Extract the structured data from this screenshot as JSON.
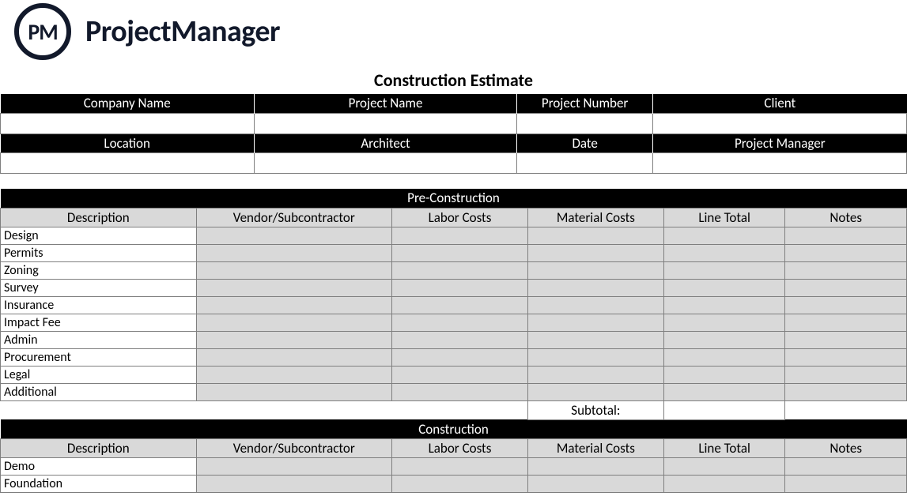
{
  "logo": {
    "initials": "PM",
    "brand": "ProjectManager"
  },
  "title": "Construction Estimate",
  "meta1": {
    "headers": [
      "Company Name",
      "Project Name",
      "Project Number",
      "Client"
    ],
    "values": [
      "",
      "",
      "",
      ""
    ]
  },
  "meta2": {
    "headers": [
      "Location",
      "Architect",
      "Date",
      "Project Manager"
    ],
    "values": [
      "",
      "",
      "",
      ""
    ]
  },
  "columns": [
    "Description",
    "Vendor/Subcontractor",
    "Labor Costs",
    "Material Costs",
    "Line Total",
    "Notes"
  ],
  "colWidths": [
    "21.6%",
    "21.6%",
    "15%",
    "15%",
    "13.4%",
    "13.4%"
  ],
  "sections": [
    {
      "title": "Pre-Construction",
      "rows": [
        "Design",
        "Permits",
        "Zoning",
        "Survey",
        "Insurance",
        "Impact Fee",
        "Admin",
        "Procurement",
        "Legal",
        "Additional"
      ],
      "subtotalLabel": "Subtotal:"
    },
    {
      "title": "Construction",
      "rows": [
        "Demo",
        "Foundation"
      ]
    }
  ],
  "colors": {
    "headerBg": "#000000",
    "headerFg": "#ffffff",
    "shadeBg": "#d9d9d9",
    "border": "#7f7f7f",
    "brand": "#12192b"
  }
}
